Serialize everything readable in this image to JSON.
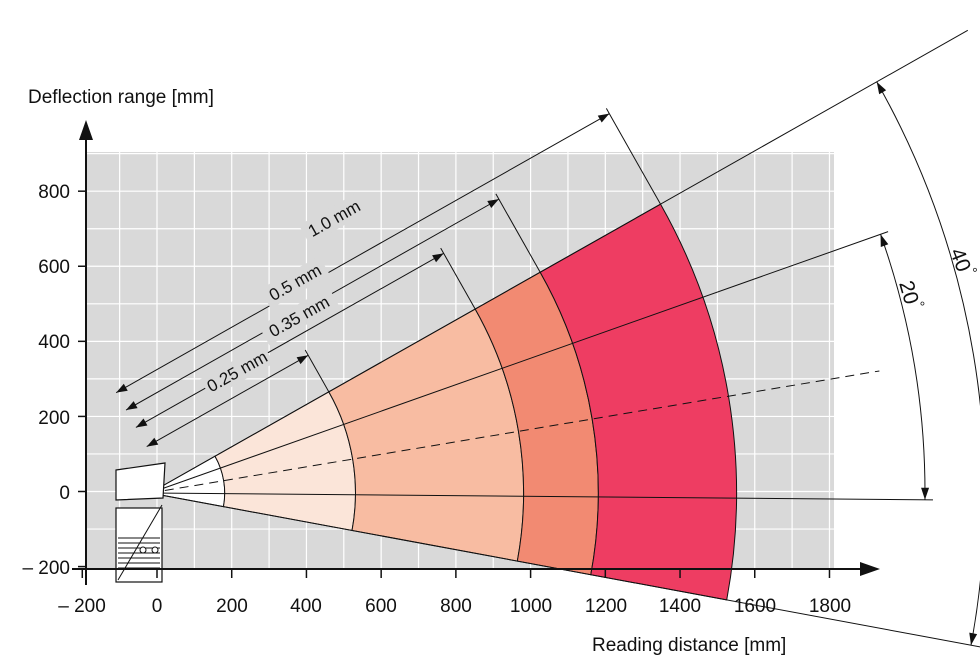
{
  "axes": {
    "ylabel": "Deflection range [mm]",
    "xlabel": "Reading distance [mm]",
    "x_ticks": [
      "– 200",
      "0",
      "200",
      "400",
      "600",
      "800",
      "1000",
      "1200",
      "1400",
      "1600",
      "1800"
    ],
    "y_ticks": [
      "800",
      "600",
      "400",
      "200",
      "0",
      "– 200"
    ]
  },
  "chart_data": {
    "type": "area",
    "xlabel": "Reading distance [mm]",
    "ylabel": "Deflection range [mm]",
    "xlim": [
      -200,
      1800
    ],
    "ylim": [
      -200,
      900
    ],
    "grid": true,
    "scan_angle_deg": 40,
    "inner_angle_deg": 20,
    "minimum_distance_mm": 200,
    "zones": [
      {
        "resolution": "0.25 mm",
        "max_distance_mm": 550,
        "color": "#fbe5d9"
      },
      {
        "resolution": "0.35 mm",
        "max_distance_mm": 1000,
        "color": "#f8bca2"
      },
      {
        "resolution": "0.5 mm",
        "max_distance_mm": 1200,
        "color": "#f28a72"
      },
      {
        "resolution": "1.0 mm",
        "max_distance_mm": 1570,
        "color": "#ee3d62"
      }
    ]
  },
  "annotations": {
    "outer_angle": "40",
    "inner_angle": "20",
    "degree_symbol": "°"
  }
}
